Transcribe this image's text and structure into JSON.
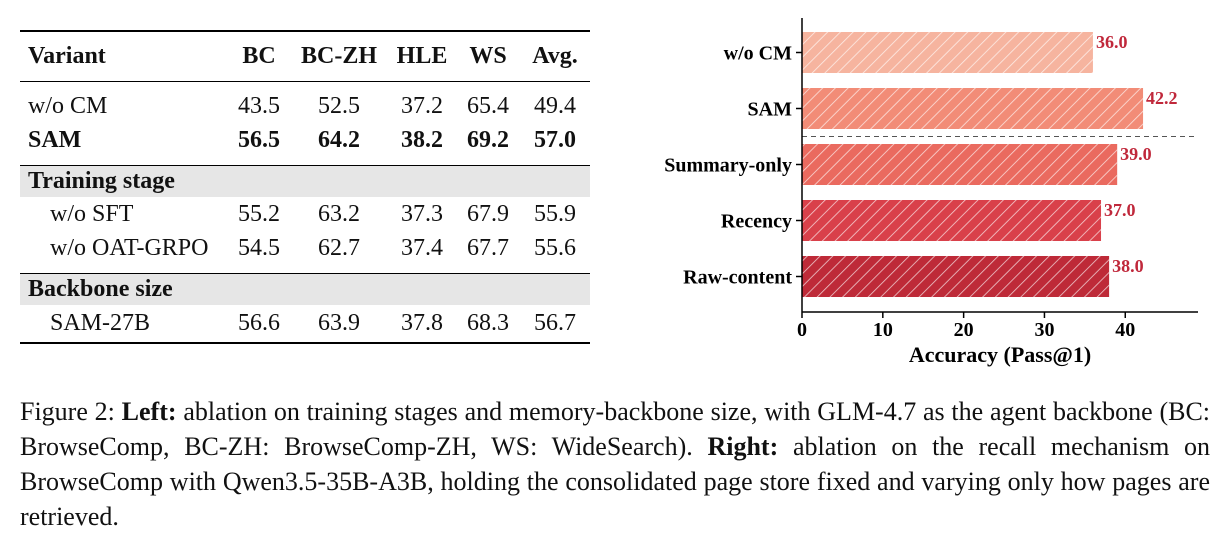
{
  "table": {
    "headers": [
      "Variant",
      "BC",
      "BC-ZH",
      "HLE",
      "WS",
      "Avg."
    ],
    "main_rows": [
      {
        "variant": "w/o CM",
        "values": [
          "43.5",
          "52.5",
          "37.2",
          "65.4",
          "49.4"
        ]
      },
      {
        "variant": "SAM",
        "values": [
          "56.5",
          "64.2",
          "38.2",
          "69.2",
          "57.0"
        ]
      }
    ],
    "training_stage": {
      "title": "Training stage",
      "rows": [
        {
          "variant": "w/o SFT",
          "values": [
            "55.2",
            "63.2",
            "37.3",
            "67.9",
            "55.9"
          ]
        },
        {
          "variant": "w/o OAT-GRPO",
          "values": [
            "54.5",
            "62.7",
            "37.4",
            "67.7",
            "55.6"
          ]
        }
      ]
    },
    "backbone_size": {
      "title": "Backbone size",
      "rows": [
        {
          "variant": "SAM-27B",
          "values": [
            "56.6",
            "63.9",
            "37.8",
            "68.3",
            "56.7"
          ]
        }
      ]
    }
  },
  "chart_data": {
    "type": "bar",
    "orientation": "horizontal",
    "categories": [
      "w/o CM",
      "SAM",
      "Summary-only",
      "Recency",
      "Raw-content"
    ],
    "values": [
      36.0,
      42.2,
      39.0,
      37.0,
      38.0
    ],
    "value_labels": [
      "36.0",
      "42.2",
      "39.0",
      "37.0",
      "38.0"
    ],
    "colors": [
      "#f6b49f",
      "#f28c77",
      "#ea6a5f",
      "#d9404a",
      "#be2a38"
    ],
    "hatch": "diagonal white stripes",
    "label_color": "#c0283b",
    "xlabel": "Accuracy (Pass@1)",
    "xlim": [
      0,
      49
    ],
    "xticks": [
      0,
      10,
      20,
      30,
      40
    ],
    "separator_after_category": "SAM",
    "grid": false
  },
  "caption": {
    "figure_label": "Figure 2:",
    "left_label": "Left:",
    "left_text": "ablation on training stages and memory-backbone size, with GLM-4.7 as the agent backbone (BC: BrowseComp, BC-ZH: BrowseComp-ZH, WS: WideSearch).",
    "right_label": "Right:",
    "right_text": "ablation on the recall mechanism on BrowseComp with Qwen3.5-35B-A3B, holding the consolidated page store fixed and varying only how pages are retrieved."
  }
}
